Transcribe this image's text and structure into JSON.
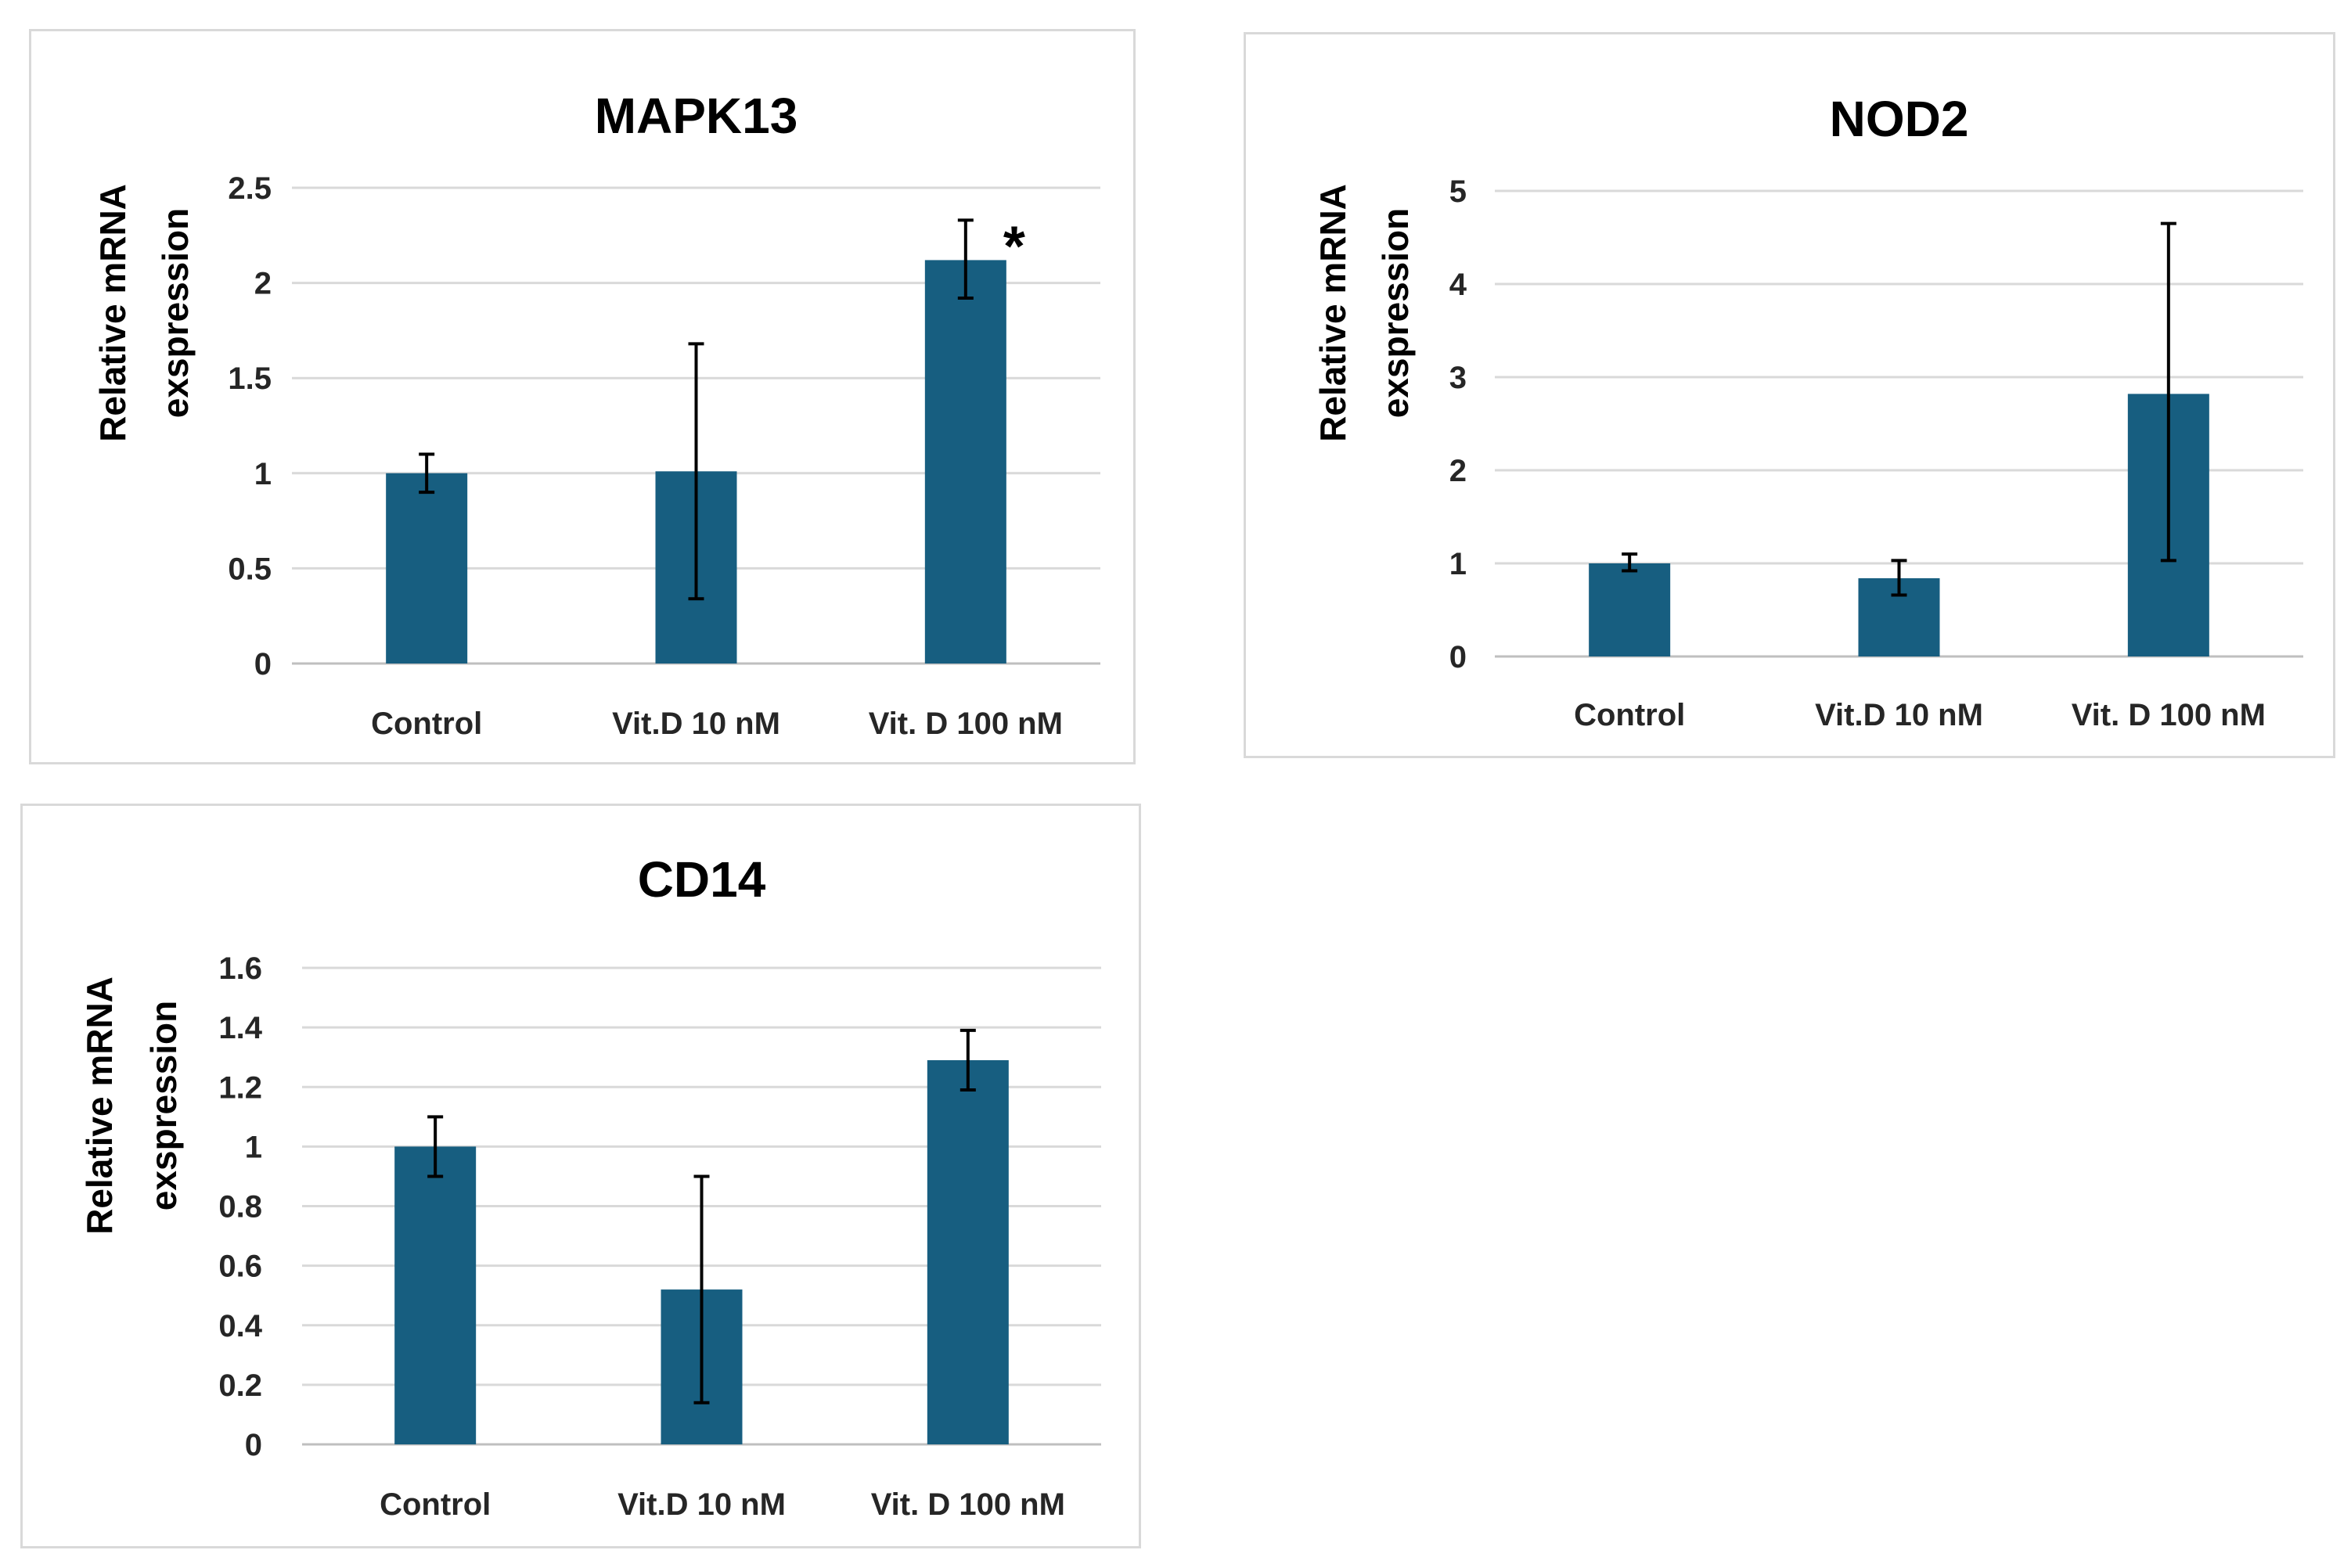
{
  "colors": {
    "bar": "#175e80"
  },
  "chart_data": [
    {
      "type": "bar",
      "title": "MAPK13",
      "ylabel_lines": [
        "Relative mRNA",
        "exspression"
      ],
      "categories": [
        "Control",
        "Vit.D 10 nM",
        "Vit. D 100 nM"
      ],
      "values": [
        1.0,
        1.01,
        2.12
      ],
      "error_low": [
        0.9,
        0.34,
        1.92
      ],
      "error_high": [
        1.1,
        1.68,
        2.33
      ],
      "ylim": [
        0,
        2.5
      ],
      "yticks": [
        0,
        0.5,
        1,
        1.5,
        2,
        2.5
      ],
      "ytick_labels": [
        "0",
        "0.5",
        "1",
        "1.5",
        "2",
        "2.5"
      ],
      "annotations": [
        {
          "category": "Vit. D 100 nM",
          "text": "*"
        }
      ],
      "grid": true
    },
    {
      "type": "bar",
      "title": "NOD2",
      "ylabel_lines": [
        "Relative mRNA",
        "exspression"
      ],
      "categories": [
        "Control",
        "Vit.D 10 nM",
        "Vit. D 100 nM"
      ],
      "values": [
        1.0,
        0.84,
        2.82
      ],
      "error_low": [
        0.92,
        0.66,
        1.03
      ],
      "error_high": [
        1.1,
        1.03,
        4.65
      ],
      "ylim": [
        0,
        5
      ],
      "yticks": [
        0,
        1,
        2,
        3,
        4,
        5
      ],
      "ytick_labels": [
        "0",
        "1",
        "2",
        "3",
        "4",
        "5"
      ],
      "annotations": [],
      "grid": true
    },
    {
      "type": "bar",
      "title": "CD14",
      "ylabel_lines": [
        "Relative mRNA",
        "exspression"
      ],
      "categories": [
        "Control",
        "Vit.D 10 nM",
        "Vit. D 100 nM"
      ],
      "values": [
        1.0,
        0.52,
        1.29
      ],
      "error_low": [
        0.9,
        0.14,
        1.19
      ],
      "error_high": [
        1.1,
        0.9,
        1.39
      ],
      "ylim": [
        0,
        1.6
      ],
      "yticks": [
        0,
        0.2,
        0.4,
        0.6,
        0.8,
        1,
        1.2,
        1.4,
        1.6
      ],
      "ytick_labels": [
        "0",
        "0.2",
        "0.4",
        "0.6",
        "0.8",
        "1",
        "1.2",
        "1.4",
        "1.6"
      ],
      "annotations": [],
      "grid": true
    }
  ]
}
